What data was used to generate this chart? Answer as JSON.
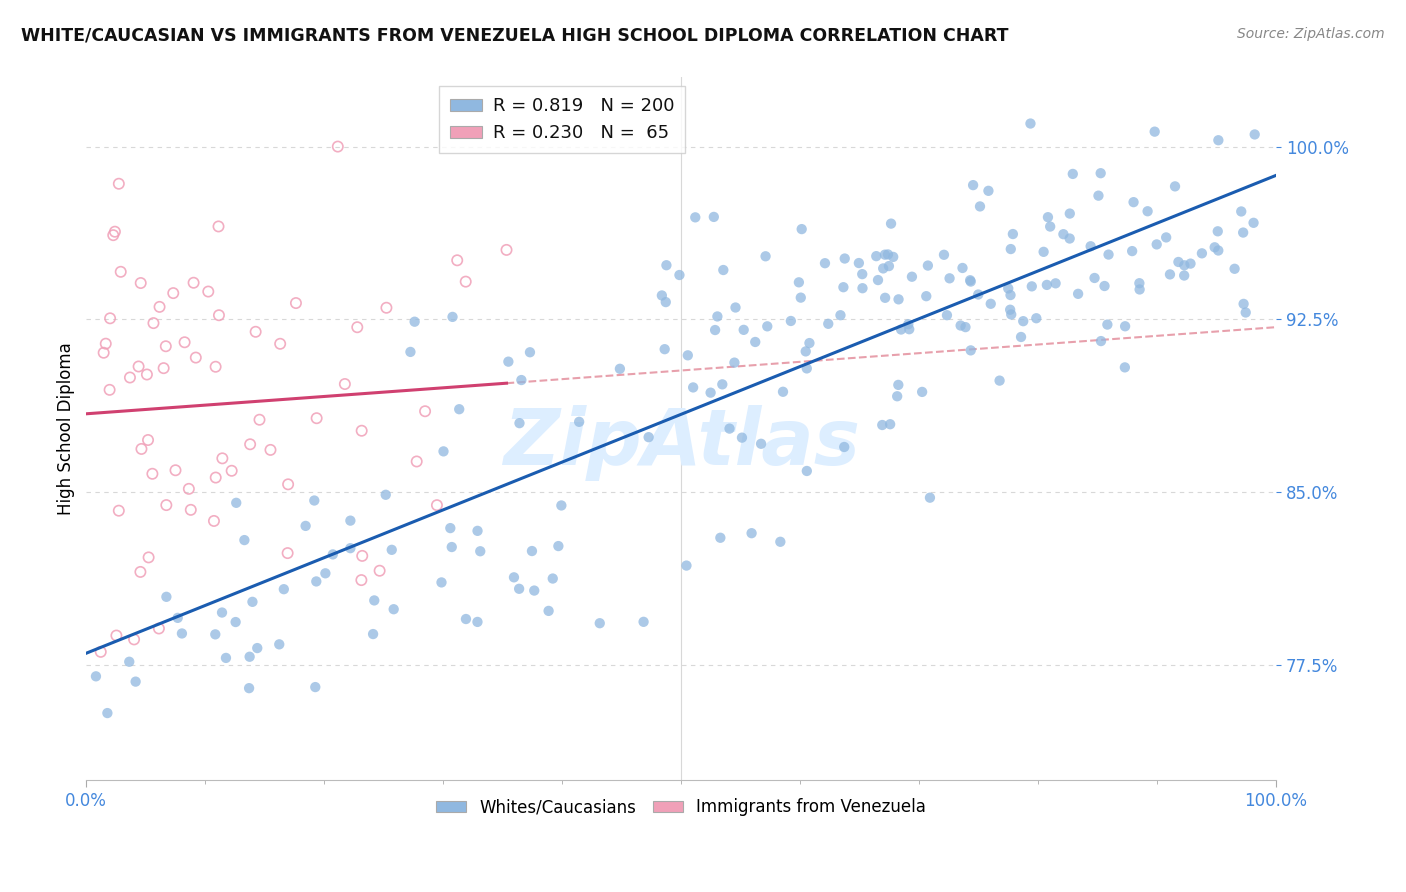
{
  "title": "WHITE/CAUCASIAN VS IMMIGRANTS FROM VENEZUELA HIGH SCHOOL DIPLOMA CORRELATION CHART",
  "source": "Source: ZipAtlas.com",
  "ylabel": "High School Diploma",
  "xlim": [
    0.0,
    1.0
  ],
  "ylim": [
    0.725,
    1.03
  ],
  "yticks": [
    0.775,
    0.85,
    0.925,
    1.0
  ],
  "ytick_labels": [
    "77.5%",
    "85.0%",
    "92.5%",
    "100.0%"
  ],
  "blue_color": "#90b8e0",
  "blue_edge_color": "#90b8e0",
  "pink_color": "#f0a0b8",
  "blue_line_color": "#1a5cb0",
  "pink_line_color": "#d04070",
  "pink_dash_color": "#e08090",
  "watermark_text": "ZipAtlas",
  "watermark_color": "#ddeeff",
  "background_color": "#ffffff",
  "grid_color": "#d8d8d8",
  "tick_color": "#4488dd",
  "blue_N": 200,
  "pink_N": 65,
  "blue_seed": 42,
  "pink_seed": 99,
  "legend_R_blue": "0.819",
  "legend_N_blue": "200",
  "legend_R_pink": "0.230",
  "legend_N_pink": "65",
  "label_whites": "Whites/Caucasians",
  "label_immigrants": "Immigrants from Venezuela"
}
